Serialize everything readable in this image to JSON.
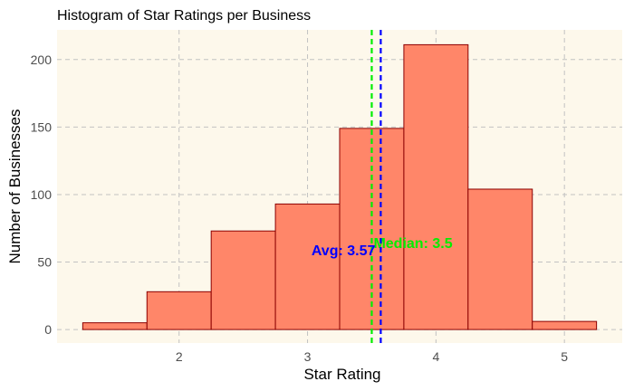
{
  "chart_data": {
    "type": "bar",
    "title": "Histogram of Star Ratings per Business",
    "xlabel": "Star Rating",
    "ylabel": "Number of Businesses",
    "bin_width": 0.5,
    "bins": [
      {
        "center": 1.5,
        "count": 5
      },
      {
        "center": 2.0,
        "count": 28
      },
      {
        "center": 2.5,
        "count": 73
      },
      {
        "center": 3.0,
        "count": 93
      },
      {
        "center": 3.5,
        "count": 149
      },
      {
        "center": 4.0,
        "count": 211
      },
      {
        "center": 4.5,
        "count": 104
      },
      {
        "center": 5.0,
        "count": 6
      }
    ],
    "xlim": [
      1.05,
      5.45
    ],
    "ylim": [
      -10,
      222
    ],
    "x_ticks": [
      2,
      3,
      4,
      5
    ],
    "y_ticks": [
      0,
      50,
      100,
      150,
      200
    ],
    "grid": true,
    "lines": [
      {
        "name": "median",
        "value": 3.5,
        "color": "#00ee00",
        "label": "Median: 3.5"
      },
      {
        "name": "mean",
        "value": 3.57,
        "color": "#0000ff",
        "label": "Avg: 3.57"
      }
    ],
    "colors": {
      "panel_background": "#fdf8eb",
      "bar_fill": "#ff8669",
      "bar_stroke": "#8b0000",
      "grid": "#c2c2c2"
    }
  }
}
